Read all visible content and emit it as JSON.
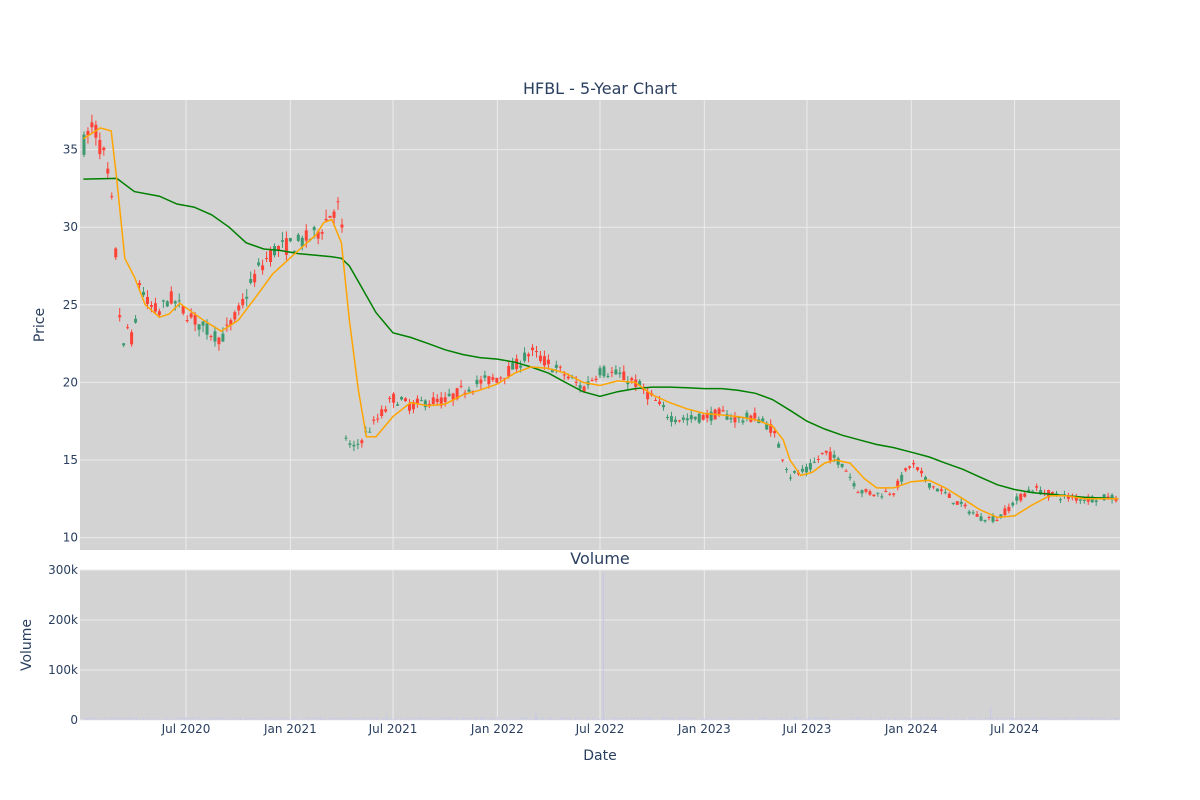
{
  "colors": {
    "plot_bg": "#d3d3d3",
    "grid": "#ebebeb",
    "increasing": "#3d9970",
    "decreasing": "#ff4136",
    "ma_short": "#ffa500",
    "ma_long": "#008000",
    "volume_bar": "#c8c8e6",
    "text": "#2a3f5f"
  },
  "chart_data": [
    {
      "type": "candlestick",
      "title": "HFBL - 5-Year Chart",
      "ylabel": "Price",
      "xlabel": "",
      "x_range": [
        "2019-12-27",
        "2025-01-03"
      ],
      "ylim": [
        9.2,
        38.2
      ],
      "y_ticks": [
        10,
        15,
        20,
        25,
        30,
        35
      ],
      "grid": true,
      "legend": "none",
      "price_anchors": [
        [
          "2020-01-02",
          35.3
        ],
        [
          "2020-01-20",
          36.6
        ],
        [
          "2020-02-10",
          34.2
        ],
        [
          "2020-02-25",
          30.5
        ],
        [
          "2020-03-02",
          26.0
        ],
        [
          "2020-03-12",
          22.0
        ],
        [
          "2020-03-20",
          23.5
        ],
        [
          "2020-03-31",
          22.5
        ],
        [
          "2020-04-10",
          26.5
        ],
        [
          "2020-04-25",
          25.0
        ],
        [
          "2020-05-15",
          24.5
        ],
        [
          "2020-06-01",
          25.5
        ],
        [
          "2020-07-01",
          24.5
        ],
        [
          "2020-08-01",
          23.5
        ],
        [
          "2020-09-01",
          22.8
        ],
        [
          "2020-10-01",
          24.5
        ],
        [
          "2020-11-01",
          27.0
        ],
        [
          "2020-12-01",
          28.5
        ],
        [
          "2021-01-15",
          29.0
        ],
        [
          "2021-02-15",
          29.5
        ],
        [
          "2021-03-15",
          31.0
        ],
        [
          "2021-04-01",
          31.5
        ],
        [
          "2021-04-09",
          16.5
        ],
        [
          "2021-04-20",
          15.6
        ],
        [
          "2021-05-10",
          16.5
        ],
        [
          "2021-06-01",
          17.5
        ],
        [
          "2021-07-01",
          19.0
        ],
        [
          "2021-08-01",
          18.5
        ],
        [
          "2021-09-01",
          18.8
        ],
        [
          "2021-10-01",
          18.8
        ],
        [
          "2021-11-01",
          19.5
        ],
        [
          "2021-12-01",
          20.0
        ],
        [
          "2022-01-01",
          20.3
        ],
        [
          "2022-02-01",
          21.0
        ],
        [
          "2022-03-01",
          22.0
        ],
        [
          "2022-04-01",
          21.2
        ],
        [
          "2022-05-01",
          20.5
        ],
        [
          "2022-06-01",
          19.6
        ],
        [
          "2022-07-01",
          20.8
        ],
        [
          "2022-08-01",
          20.5
        ],
        [
          "2022-09-01",
          20.0
        ],
        [
          "2022-10-01",
          19.0
        ],
        [
          "2022-11-01",
          17.8
        ],
        [
          "2022-12-01",
          17.6
        ],
        [
          "2023-01-01",
          17.8
        ],
        [
          "2023-02-01",
          18.0
        ],
        [
          "2023-03-01",
          17.6
        ],
        [
          "2023-04-01",
          17.8
        ],
        [
          "2023-05-01",
          17.0
        ],
        [
          "2023-06-01",
          14.0
        ],
        [
          "2023-07-01",
          14.3
        ],
        [
          "2023-08-01",
          15.5
        ],
        [
          "2023-09-01",
          14.8
        ],
        [
          "2023-10-01",
          13.0
        ],
        [
          "2023-11-01",
          12.8
        ],
        [
          "2023-12-01",
          13.0
        ],
        [
          "2024-01-01",
          14.8
        ],
        [
          "2024-02-01",
          13.5
        ],
        [
          "2024-03-01",
          12.8
        ],
        [
          "2024-04-01",
          12.0
        ],
        [
          "2024-05-01",
          11.3
        ],
        [
          "2024-06-01",
          11.2
        ],
        [
          "2024-07-01",
          12.3
        ],
        [
          "2024-08-01",
          13.2
        ],
        [
          "2024-09-01",
          12.8
        ],
        [
          "2024-10-01",
          12.6
        ],
        [
          "2024-11-01",
          12.5
        ],
        [
          "2024-12-31",
          12.6
        ]
      ],
      "ma_short": [
        [
          "2020-01-02",
          35.7
        ],
        [
          "2020-02-01",
          36.4
        ],
        [
          "2020-02-20",
          36.2
        ],
        [
          "2020-03-01",
          33.0
        ],
        [
          "2020-03-15",
          28.0
        ],
        [
          "2020-04-01",
          26.8
        ],
        [
          "2020-04-20",
          25.0
        ],
        [
          "2020-05-15",
          24.2
        ],
        [
          "2020-06-01",
          24.4
        ],
        [
          "2020-06-20",
          25.1
        ],
        [
          "2020-08-01",
          24.0
        ],
        [
          "2020-09-01",
          23.3
        ],
        [
          "2020-10-01",
          24.0
        ],
        [
          "2020-11-01",
          25.5
        ],
        [
          "2020-12-01",
          27.0
        ],
        [
          "2021-01-15",
          28.5
        ],
        [
          "2021-02-15",
          29.5
        ],
        [
          "2021-03-01",
          30.3
        ],
        [
          "2021-03-15",
          30.5
        ],
        [
          "2021-04-01",
          29.0
        ],
        [
          "2021-04-15",
          24.0
        ],
        [
          "2021-05-01",
          19.5
        ],
        [
          "2021-05-15",
          16.5
        ],
        [
          "2021-06-01",
          16.5
        ],
        [
          "2021-07-01",
          17.8
        ],
        [
          "2021-08-01",
          18.7
        ],
        [
          "2021-09-01",
          18.5
        ],
        [
          "2021-10-01",
          18.6
        ],
        [
          "2021-11-01",
          19.2
        ],
        [
          "2021-12-01",
          19.5
        ],
        [
          "2022-01-01",
          19.9
        ],
        [
          "2022-02-01",
          20.6
        ],
        [
          "2022-03-01",
          21.0
        ],
        [
          "2022-04-01",
          20.9
        ],
        [
          "2022-05-01",
          20.6
        ],
        [
          "2022-06-01",
          20.0
        ],
        [
          "2022-07-01",
          19.8
        ],
        [
          "2022-08-01",
          20.1
        ],
        [
          "2022-09-01",
          20.0
        ],
        [
          "2022-10-01",
          19.2
        ],
        [
          "2022-11-01",
          18.7
        ],
        [
          "2022-12-01",
          18.3
        ],
        [
          "2023-01-01",
          18.0
        ],
        [
          "2023-02-01",
          17.9
        ],
        [
          "2023-03-01",
          17.8
        ],
        [
          "2023-04-01",
          17.6
        ],
        [
          "2023-05-01",
          17.2
        ],
        [
          "2023-05-20",
          16.3
        ],
        [
          "2023-06-01",
          15.0
        ],
        [
          "2023-06-20",
          14.0
        ],
        [
          "2023-07-10",
          14.2
        ],
        [
          "2023-08-01",
          14.8
        ],
        [
          "2023-08-20",
          15.0
        ],
        [
          "2023-09-15",
          14.8
        ],
        [
          "2023-10-10",
          13.8
        ],
        [
          "2023-11-01",
          13.2
        ],
        [
          "2023-12-01",
          13.2
        ],
        [
          "2024-01-01",
          13.6
        ],
        [
          "2024-02-01",
          13.7
        ],
        [
          "2024-03-01",
          13.2
        ],
        [
          "2024-04-01",
          12.5
        ],
        [
          "2024-05-01",
          11.8
        ],
        [
          "2024-06-01",
          11.3
        ],
        [
          "2024-07-01",
          11.4
        ],
        [
          "2024-08-01",
          12.1
        ],
        [
          "2024-09-01",
          12.7
        ],
        [
          "2024-10-01",
          12.7
        ],
        [
          "2024-11-01",
          12.5
        ],
        [
          "2024-12-31",
          12.5
        ]
      ],
      "ma_long": [
        [
          "2020-01-02",
          33.1
        ],
        [
          "2020-03-01",
          33.15
        ],
        [
          "2020-04-01",
          32.3
        ],
        [
          "2020-05-15",
          32.0
        ],
        [
          "2020-06-15",
          31.5
        ],
        [
          "2020-07-15",
          31.3
        ],
        [
          "2020-08-15",
          30.8
        ],
        [
          "2020-09-15",
          30.0
        ],
        [
          "2020-10-15",
          29.0
        ],
        [
          "2020-11-15",
          28.6
        ],
        [
          "2020-12-15",
          28.5
        ],
        [
          "2021-01-15",
          28.3
        ],
        [
          "2021-02-15",
          28.2
        ],
        [
          "2021-03-15",
          28.1
        ],
        [
          "2021-04-01",
          28.0
        ],
        [
          "2021-04-15",
          27.5
        ],
        [
          "2021-05-01",
          26.5
        ],
        [
          "2021-06-01",
          24.5
        ],
        [
          "2021-07-01",
          23.2
        ],
        [
          "2021-08-01",
          22.9
        ],
        [
          "2021-09-01",
          22.5
        ],
        [
          "2021-10-01",
          22.1
        ],
        [
          "2021-11-01",
          21.8
        ],
        [
          "2021-12-01",
          21.6
        ],
        [
          "2022-01-01",
          21.5
        ],
        [
          "2022-02-01",
          21.3
        ],
        [
          "2022-03-01",
          21.0
        ],
        [
          "2022-04-01",
          20.6
        ],
        [
          "2022-05-01",
          20.0
        ],
        [
          "2022-06-01",
          19.4
        ],
        [
          "2022-07-01",
          19.1
        ],
        [
          "2022-08-01",
          19.4
        ],
        [
          "2022-09-01",
          19.6
        ],
        [
          "2022-10-01",
          19.7
        ],
        [
          "2022-11-01",
          19.7
        ],
        [
          "2022-12-01",
          19.65
        ],
        [
          "2023-01-01",
          19.6
        ],
        [
          "2023-02-01",
          19.6
        ],
        [
          "2023-03-01",
          19.5
        ],
        [
          "2023-04-01",
          19.3
        ],
        [
          "2023-05-01",
          18.9
        ],
        [
          "2023-06-01",
          18.2
        ],
        [
          "2023-07-01",
          17.5
        ],
        [
          "2023-08-01",
          17.0
        ],
        [
          "2023-09-01",
          16.6
        ],
        [
          "2023-10-01",
          16.3
        ],
        [
          "2023-11-01",
          16.0
        ],
        [
          "2023-12-01",
          15.8
        ],
        [
          "2024-01-01",
          15.5
        ],
        [
          "2024-02-01",
          15.2
        ],
        [
          "2024-03-01",
          14.8
        ],
        [
          "2024-04-01",
          14.4
        ],
        [
          "2024-05-01",
          13.9
        ],
        [
          "2024-06-01",
          13.4
        ],
        [
          "2024-07-01",
          13.1
        ],
        [
          "2024-08-01",
          12.9
        ],
        [
          "2024-09-01",
          12.8
        ],
        [
          "2024-10-01",
          12.7
        ],
        [
          "2024-11-01",
          12.6
        ],
        [
          "2024-12-31",
          12.5
        ]
      ]
    },
    {
      "type": "bar",
      "title": "Volume",
      "ylabel": "Volume",
      "xlabel": "Date",
      "ylim": [
        0,
        300000
      ],
      "y_ticks": [
        0,
        100000,
        200000,
        300000
      ],
      "y_tick_labels": [
        "0",
        "100k",
        "200k",
        "300k"
      ],
      "x_ticks": [
        "2020-07-01",
        "2021-01-01",
        "2021-07-01",
        "2022-01-01",
        "2022-07-01",
        "2023-01-01",
        "2023-07-01",
        "2024-01-01",
        "2024-07-01"
      ],
      "x_tick_labels": [
        "Jul 2020",
        "Jan 2021",
        "Jul 2021",
        "Jan 2022",
        "Jul 2022",
        "Jan 2023",
        "Jul 2023",
        "Jan 2024",
        "Jul 2024"
      ],
      "grid": true,
      "spikes": [
        [
          "2022-07-07",
          295000
        ],
        [
          "2024-05-20",
          28000
        ],
        [
          "2022-03-10",
          14000
        ],
        [
          "2021-06-20",
          11000
        ],
        [
          "2023-06-10",
          9000
        ]
      ],
      "typical_volume": 3000
    }
  ]
}
